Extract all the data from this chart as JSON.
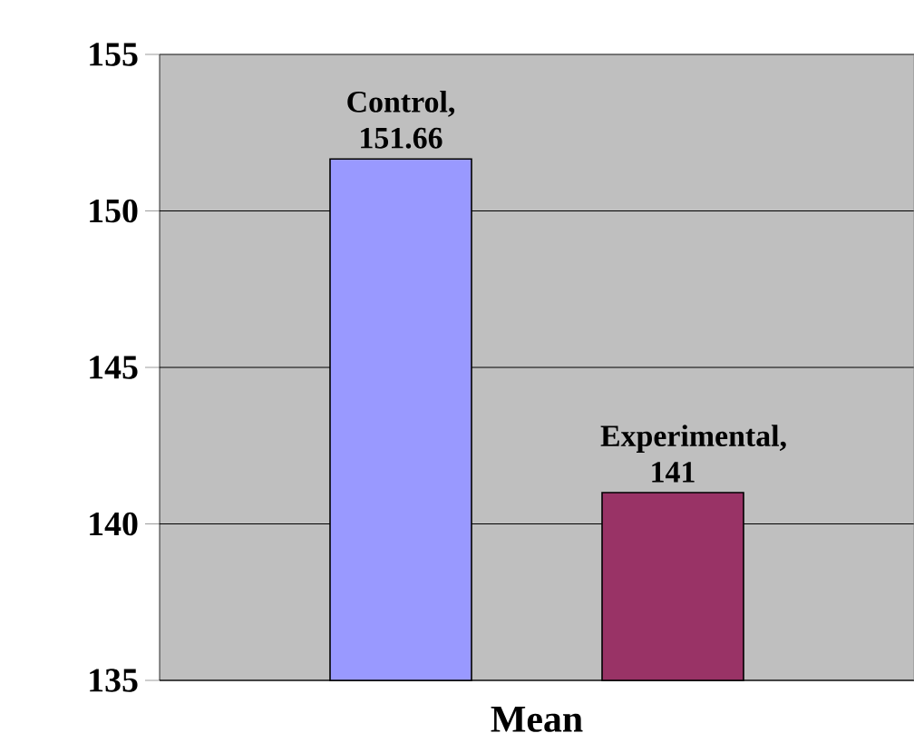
{
  "chart_data": {
    "type": "bar",
    "categories": [
      "Mean"
    ],
    "series": [
      {
        "color": "#9999ff",
        "values": [
          151.66
        ],
        "value_labels": [
          "Control, 151.66"
        ]
      },
      {
        "color": "#993366",
        "values": [
          141
        ],
        "value_labels": [
          "Experimental, 141"
        ]
      }
    ],
    "ylim": [
      135,
      155
    ],
    "yticks": [
      135,
      140,
      145,
      150,
      155
    ],
    "grid": "y"
  }
}
